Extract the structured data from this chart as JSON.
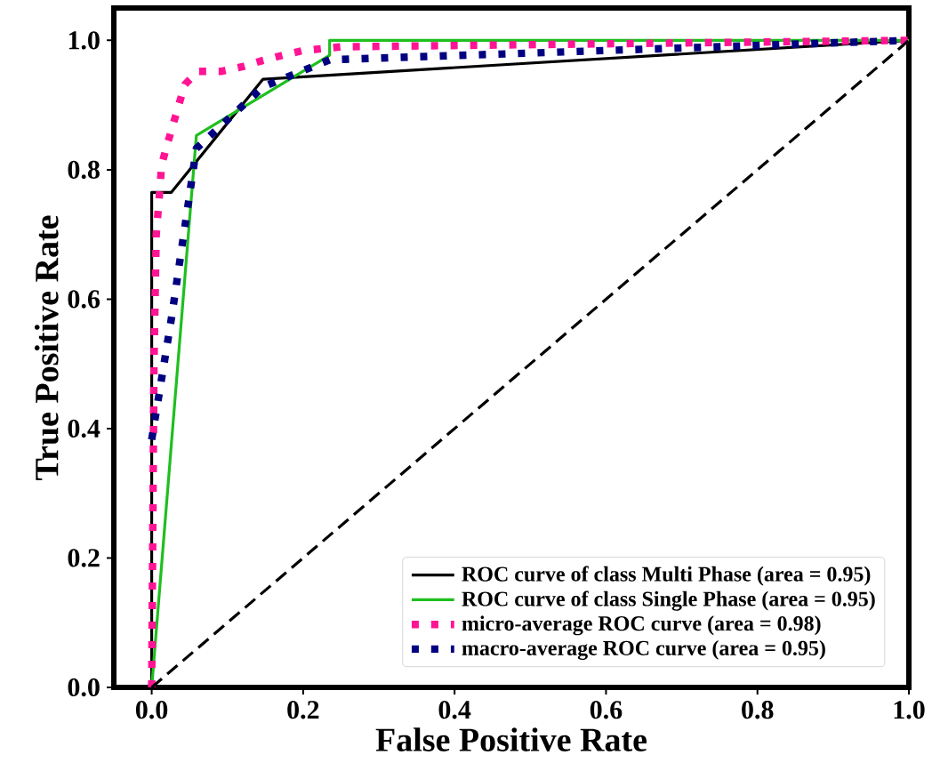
{
  "chart_data": {
    "type": "line",
    "xlabel": "False Positive Rate",
    "ylabel": "True Positive Rate",
    "xlim": [
      -0.05,
      1.0
    ],
    "ylim": [
      0.0,
      1.05
    ],
    "xticks": [
      {
        "value": 0,
        "label": "0.0"
      },
      {
        "value": 0.2,
        "label": "0.2"
      },
      {
        "value": 0.4,
        "label": "0.4"
      },
      {
        "value": 0.6,
        "label": "0.6"
      },
      {
        "value": 0.8,
        "label": "0.8"
      },
      {
        "value": 1.0,
        "label": "1.0"
      }
    ],
    "yticks": [
      {
        "value": 0,
        "label": "0.0"
      },
      {
        "value": 0.2,
        "label": "0.2"
      },
      {
        "value": 0.4,
        "label": "0.4"
      },
      {
        "value": 0.6,
        "label": "0.6"
      },
      {
        "value": 0.8,
        "label": "0.8"
      },
      {
        "value": 1.0,
        "label": "1.0"
      }
    ],
    "grid": false,
    "legend": "bottom right",
    "series": [
      {
        "name": "ROC curve of class Multi Phase (area = 0.95)",
        "color": "#000000",
        "line_style": "solid",
        "x": [
          0,
          0,
          0.026,
          0.147,
          1.0
        ],
        "values": [
          0,
          0.765,
          0.765,
          0.94,
          1.0
        ]
      },
      {
        "name": "ROC curve of class Single Phase (area = 0.95)",
        "color": "#1fbf1f",
        "line_style": "solid",
        "x": [
          0,
          0.059,
          0.235,
          0.235,
          1.0
        ],
        "values": [
          0,
          0.853,
          0.977,
          1.0,
          1.0
        ]
      },
      {
        "name": "micro-average ROC curve (area = 0.98)",
        "color": "#ff1493",
        "line_style": "dotted",
        "x": [
          0,
          0.003,
          0.006,
          0.011,
          0.013,
          0.02,
          0.028,
          0.036,
          0.044,
          0.061,
          0.091,
          0.119,
          0.144,
          0.173,
          0.199,
          0.25,
          1.0
        ],
        "values": [
          0,
          0.5,
          0.7,
          0.773,
          0.807,
          0.837,
          0.869,
          0.901,
          0.932,
          0.952,
          0.952,
          0.959,
          0.968,
          0.977,
          0.984,
          0.99,
          1.0
        ]
      },
      {
        "name": "macro-average ROC curve (area = 0.95)",
        "color": "#000080",
        "line_style": "dotted",
        "x": [
          0,
          0.026,
          0.059,
          0.147,
          0.235,
          1.0
        ],
        "values": [
          0.383,
          0.57,
          0.833,
          0.928,
          0.97,
          1.0
        ]
      },
      {
        "color": "#000000",
        "line_style": "dashed",
        "x": [
          0,
          1
        ],
        "values": [
          0,
          1
        ]
      }
    ]
  }
}
